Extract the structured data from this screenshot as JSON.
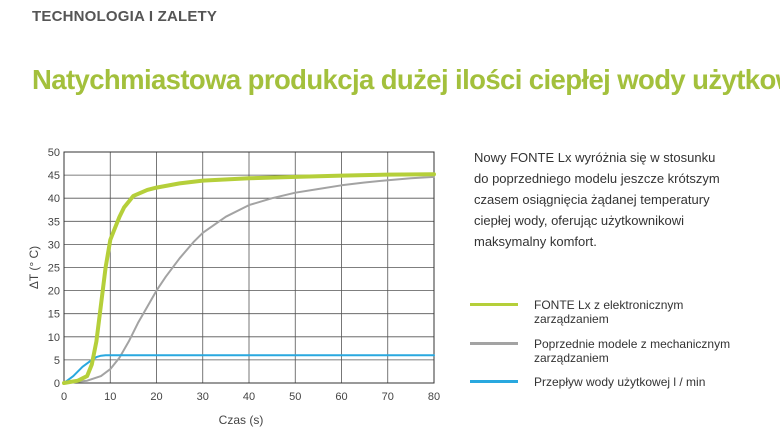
{
  "header": {
    "section": "TECHNOLOGIA I ZALETY",
    "title": "Natychmiastowa produkcja dużej ilości ciepłej wody użytkowej"
  },
  "description": "Nowy FONTE Lx wyróżnia się w stosunku\ndo poprzedniego modelu jeszcze krótszym\nczasem osiągnięcia żądanej temperatury\nciepłej wody, oferując użytkownikowi\nmaksymalny komfort.",
  "legend": [
    {
      "label": "FONTE Lx z elektronicznym\nzarządzaniem",
      "color": "#b5cf3a"
    },
    {
      "label": "Poprzednie modele z mechanicznym\nzarządzaniem",
      "color": "#a3a3a3"
    },
    {
      "label": "Przepływ wody użytkowej l / min",
      "color": "#29a8df"
    }
  ],
  "chart_data": {
    "type": "line",
    "xlabel": "Czas (s)",
    "ylabel": "ΔT (° C)",
    "xlim": [
      0,
      80
    ],
    "ylim": [
      0,
      50
    ],
    "xticks": [
      0,
      10,
      20,
      30,
      40,
      50,
      60,
      70,
      80
    ],
    "yticks": [
      0,
      5,
      10,
      15,
      20,
      25,
      30,
      35,
      40,
      45,
      50
    ],
    "grid": true,
    "legend_position": "right",
    "series": [
      {
        "name": "FONTE Lx z elektronicznym zarządzaniem",
        "color": "#b5cf3a",
        "x": [
          0,
          3,
          5,
          6,
          7,
          8,
          9,
          10,
          11,
          12,
          13,
          15,
          18,
          20,
          25,
          30,
          40,
          50,
          60,
          70,
          80
        ],
        "y": [
          0,
          0.5,
          1.5,
          4,
          9,
          17,
          25,
          31,
          33.5,
          36,
          38,
          40.5,
          41.8,
          42.3,
          43.2,
          43.8,
          44.3,
          44.6,
          44.9,
          45.1,
          45.2
        ]
      },
      {
        "name": "Poprzednie modele z mechanicznym zarządzaniem",
        "color": "#a3a3a3",
        "x": [
          0,
          5,
          8,
          10,
          12,
          14,
          16,
          18,
          20,
          22,
          25,
          28,
          30,
          35,
          40,
          45,
          50,
          55,
          60,
          65,
          70,
          75,
          80
        ],
        "y": [
          0,
          0.5,
          1.5,
          3,
          5.5,
          9,
          13,
          16.5,
          20,
          23,
          27,
          30.5,
          32.5,
          36,
          38.5,
          40,
          41.2,
          42,
          42.8,
          43.4,
          43.9,
          44.3,
          44.6
        ]
      },
      {
        "name": "Przepływ wody użytkowej l / min",
        "color": "#29a8df",
        "x": [
          0,
          2,
          4,
          6,
          7,
          8,
          9,
          10,
          20,
          40,
          60,
          80
        ],
        "y": [
          0,
          1.5,
          3.5,
          5,
          5.6,
          5.9,
          6,
          6,
          6,
          6,
          6,
          6
        ]
      }
    ]
  }
}
